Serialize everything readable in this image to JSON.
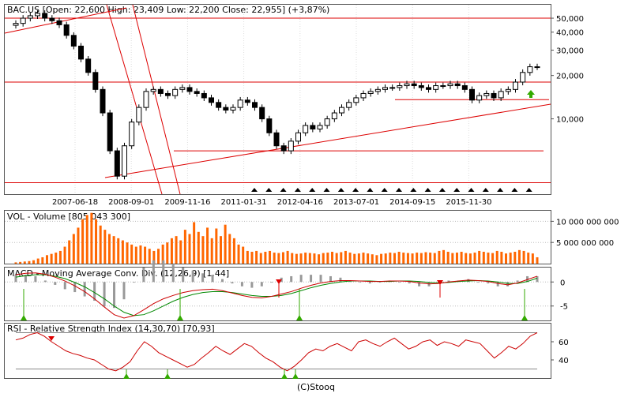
{
  "panels": {
    "price": {
      "title": "BAC.US [Open: 22,600  High: 23,409  Low: 22,200  Close: 22,955] (+3,87%)"
    },
    "volume": {
      "title": "VOL - Volume [805 043 300]"
    },
    "macd": {
      "title": "MACD - Moving Average Conv. Div. (12,26,9) [1,44]"
    },
    "rsi": {
      "title": "RSI - Relative Strength Index (14,30,70) [70,93]"
    }
  },
  "footer": "(C)Stooq",
  "colors": {
    "candle": "#000000",
    "trendline": "#dd0000",
    "volume_bar": "#ff6600",
    "macd_line": "#cc0000",
    "signal_line": "#008800",
    "histogram": "#999999",
    "rsi_line": "#cc0000",
    "grid": "#888888",
    "signal_up": "#33aa00",
    "signal_down": "#dd0000"
  },
  "chart_data": [
    {
      "id": "price",
      "type": "candlestick",
      "x_ticks": [
        "2007-06-18",
        "2008-09-01",
        "2009-11-16",
        "2011-01-31",
        "2012-04-16",
        "2013-07-01",
        "2014-09-15",
        "2015-11-30"
      ],
      "y_ticks": [
        "50,000",
        "40,000",
        "30,000",
        "20,000",
        "10,000"
      ],
      "y_tick_values": [
        50000,
        40000,
        30000,
        20000,
        10000
      ],
      "y_scale": "log",
      "ylim": [
        3000,
        62000
      ],
      "close_series": [
        46000,
        50000,
        52000,
        54000,
        50000,
        48000,
        45000,
        38000,
        32000,
        26000,
        21000,
        16000,
        11000,
        6000,
        4000,
        6500,
        9500,
        12000,
        15500,
        16000,
        15000,
        14500,
        16000,
        16500,
        15500,
        15000,
        14000,
        13000,
        12000,
        11500,
        12000,
        13500,
        13000,
        12000,
        10000,
        8000,
        6500,
        6000,
        7000,
        8000,
        9000,
        8500,
        9000,
        10000,
        11000,
        12000,
        13000,
        14000,
        15000,
        15500,
        16000,
        16500,
        16500,
        17000,
        17500,
        17000,
        16500,
        16000,
        17000,
        17000,
        17500,
        17000,
        16000,
        13500,
        14500,
        15000,
        14000,
        15500,
        16000,
        18000,
        21000,
        23000,
        22955
      ],
      "horizontal_lines": [
        50000,
        18000,
        13600,
        6000,
        3600
      ],
      "signals": {
        "up_arrow_count": 1,
        "triangle_markers": 20
      }
    },
    {
      "id": "volume",
      "type": "bar",
      "y_ticks": [
        "10 000 000 000",
        "5 000 000 000"
      ],
      "y_tick_values": [
        10000000000,
        5000000000
      ],
      "ylim": [
        0,
        12500000000
      ],
      "values_billions": [
        0.3,
        0.4,
        0.5,
        0.6,
        0.8,
        1.2,
        1.5,
        2.0,
        2.3,
        2.6,
        3.0,
        4.0,
        5.5,
        7.0,
        8.5,
        10.5,
        11.5,
        12.0,
        10.5,
        9.0,
        8.0,
        7.0,
        6.5,
        6.0,
        5.5,
        5.0,
        4.5,
        4.0,
        4.3,
        4.0,
        3.5,
        3.0,
        3.5,
        4.5,
        5.0,
        6.0,
        6.5,
        5.5,
        8.0,
        7.0,
        9.8,
        7.5,
        6.5,
        8.5,
        6.0,
        8.3,
        6.5,
        9.2,
        7.0,
        6.0,
        4.5,
        4.0,
        3.0,
        2.8,
        3.0,
        2.5,
        2.8,
        3.0,
        2.6,
        2.5,
        2.7,
        3.0,
        2.5,
        2.3,
        2.4,
        2.6,
        2.5,
        2.4,
        2.2,
        2.5,
        2.6,
        2.8,
        2.5,
        2.7,
        3.0,
        2.6,
        2.3,
        2.4,
        2.6,
        2.4,
        2.2,
        2.0,
        2.3,
        2.4,
        2.6,
        2.5,
        2.8,
        2.6,
        2.5,
        2.4,
        2.6,
        2.5,
        2.7,
        2.6,
        2.5,
        3.0,
        3.2,
        2.8,
        2.5,
        2.6,
        2.8,
        2.5,
        2.4,
        2.6,
        3.0,
        2.8,
        2.6,
        2.5,
        3.0,
        2.8,
        2.4,
        2.6,
        2.8,
        3.2,
        3.0,
        2.6,
        2.4,
        1.5
      ]
    },
    {
      "id": "macd",
      "type": "line",
      "y_ticks": [
        "0",
        "-5"
      ],
      "y_tick_values": [
        0,
        -5
      ],
      "ylim": [
        -8,
        3
      ],
      "macd_series": [
        1.5,
        1.8,
        1.9,
        1.6,
        1.0,
        0.2,
        -0.8,
        -2.0,
        -3.5,
        -5.2,
        -6.8,
        -7.5,
        -7.0,
        -5.8,
        -4.5,
        -3.5,
        -2.8,
        -2.2,
        -1.8,
        -1.6,
        -1.5,
        -1.8,
        -2.3,
        -2.8,
        -3.2,
        -3.3,
        -3.0,
        -2.5,
        -2.0,
        -1.3,
        -0.7,
        -0.2,
        0.1,
        0.3,
        0.3,
        0.2,
        0.1,
        0.1,
        0.2,
        0.2,
        0.1,
        -0.2,
        -0.4,
        -0.3,
        0.0,
        0.2,
        0.4,
        0.3,
        0.1,
        -0.3,
        -0.6,
        -0.2,
        0.5,
        1.2
      ],
      "signal_series": [
        1.0,
        1.3,
        1.5,
        1.5,
        1.2,
        0.7,
        -0.1,
        -1.0,
        -2.2,
        -3.5,
        -5.0,
        -6.3,
        -7.0,
        -6.8,
        -6.0,
        -5.0,
        -4.0,
        -3.2,
        -2.6,
        -2.2,
        -2.0,
        -2.0,
        -2.2,
        -2.5,
        -2.8,
        -3.0,
        -3.0,
        -2.8,
        -2.4,
        -1.8,
        -1.2,
        -0.7,
        -0.3,
        0.0,
        0.2,
        0.2,
        0.2,
        0.1,
        0.1,
        0.2,
        0.2,
        0.1,
        -0.1,
        -0.2,
        -0.1,
        0.1,
        0.2,
        0.3,
        0.2,
        0.0,
        -0.3,
        -0.3,
        0.1,
        0.8
      ]
    },
    {
      "id": "rsi",
      "type": "line",
      "y_ticks": [
        "60",
        "40"
      ],
      "y_tick_values": [
        60,
        40
      ],
      "ylim": [
        20,
        80
      ],
      "levels": [
        70,
        30
      ],
      "rsi_series": [
        62,
        64,
        68,
        70,
        66,
        60,
        55,
        50,
        47,
        45,
        42,
        40,
        35,
        30,
        28,
        32,
        38,
        50,
        60,
        55,
        48,
        44,
        40,
        36,
        32,
        35,
        42,
        48,
        55,
        50,
        46,
        52,
        58,
        55,
        48,
        42,
        38,
        32,
        28,
        33,
        40,
        48,
        52,
        50,
        55,
        58,
        54,
        50,
        60,
        62,
        58,
        55,
        60,
        64,
        58,
        52,
        55,
        60,
        62,
        56,
        60,
        58,
        55,
        62,
        60,
        58,
        50,
        42,
        48,
        55,
        52,
        58,
        66,
        70
      ]
    }
  ]
}
